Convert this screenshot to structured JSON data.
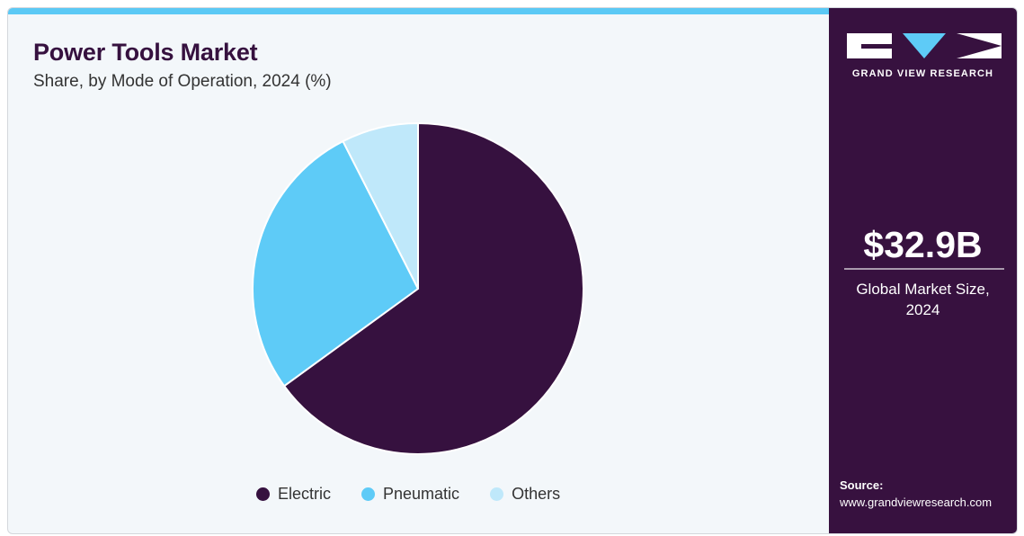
{
  "header": {
    "title": "Power Tools Market",
    "subtitle": "Share, by Mode of Operation, 2024 (%)"
  },
  "chart_data": {
    "type": "pie",
    "title": "Power Tools Market",
    "subtitle": "Share, by Mode of Operation, 2024 (%)",
    "categories": [
      "Electric",
      "Pneumatic",
      "Others"
    ],
    "values": [
      65,
      27.5,
      7.5
    ],
    "colors": [
      "#36113f",
      "#5ecbf7",
      "#bfe8fa"
    ],
    "legend_position": "bottom"
  },
  "sidebar": {
    "logo_text": "GRAND VIEW RESEARCH",
    "market_value": "$32.9B",
    "market_label_line1": "Global Market Size,",
    "market_label_line2": "2024",
    "source_title": "Source:",
    "source_url": "www.grandviewresearch.com"
  }
}
